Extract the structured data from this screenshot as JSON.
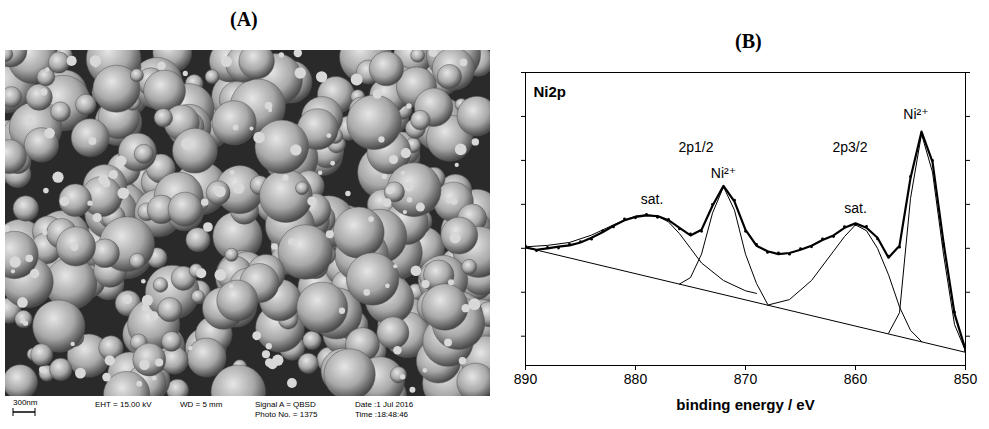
{
  "panel_labels": [
    "(A)",
    "(B)"
  ],
  "image": {
    "scale_bar": "300nm",
    "info": [
      [
        "EHT = 15.00 kV"
      ],
      [
        "WD = 5 mm"
      ],
      [
        "Signal A = QBSD",
        "Photo No. = 1375"
      ],
      [
        "Date :1 Jul 2016",
        "Time :18:48:46"
      ]
    ]
  },
  "chart_data": {
    "type": "line",
    "title": "Ni2p",
    "x_label": "binding energy / eV",
    "xlim": [
      890,
      850
    ],
    "xticks": [
      890,
      880,
      870,
      860,
      850
    ],
    "ylim": [
      0,
      100
    ],
    "yticks": [
      10,
      25,
      40,
      55,
      70,
      85,
      100
    ],
    "tick_labels": "x",
    "grid": false,
    "series": [
      {
        "type": "scatter",
        "marker": "dot",
        "color": "#000000",
        "x": [
          890,
          889,
          888,
          887,
          886,
          885,
          884,
          883,
          882,
          881,
          880,
          879,
          878,
          877,
          876,
          875,
          874,
          873,
          872,
          871,
          870,
          869,
          868,
          867,
          866,
          865,
          864,
          863,
          862,
          861,
          860,
          859,
          858,
          857,
          856,
          855,
          854,
          853,
          852,
          851,
          850
        ],
        "values": [
          40.8,
          39.2,
          40.3,
          40.1,
          41.4,
          42.3,
          43.1,
          45.9,
          47.3,
          50.0,
          50.4,
          51.6,
          50.6,
          49.9,
          46.6,
          44.9,
          45.8,
          55.0,
          60.8,
          56.4,
          45.8,
          41.3,
          38.6,
          38.4,
          38.0,
          39.9,
          40.5,
          43.2,
          44.0,
          47.4,
          48.1,
          47.5,
          43.2,
          37.3,
          40.4,
          64.5,
          79.3,
          70.0,
          41.5,
          18.2,
          5.0
        ]
      },
      {
        "type": "line",
        "line_style": "thick",
        "color": "#000000",
        "x": [
          890,
          889,
          888,
          887,
          886,
          885,
          884,
          883,
          882,
          881,
          880,
          879,
          878,
          877,
          876,
          875,
          874,
          873,
          872,
          871,
          870,
          869,
          868,
          867,
          866,
          865,
          864,
          863,
          862,
          861,
          860,
          859,
          858,
          857,
          856,
          855,
          854,
          853,
          852,
          851,
          850
        ],
        "values": [
          40.3,
          39.5,
          40,
          40.6,
          41,
          42,
          43.6,
          45.5,
          47.7,
          49.6,
          50.7,
          51.2,
          51,
          49.6,
          47,
          44.4,
          46.3,
          54.5,
          61.3,
          55.9,
          46.3,
          40.9,
          39,
          38,
          38.4,
          39.5,
          40.9,
          42.8,
          44.4,
          47,
          48.5,
          47,
          43.6,
          36.8,
          40.9,
          64,
          79.8,
          69.5,
          42,
          17.7,
          5.4
        ]
      },
      {
        "type": "line",
        "line_style": "thin",
        "color": "#000000",
        "x": [
          857,
          856,
          855,
          854,
          853,
          852,
          851,
          850
        ],
        "values": [
          11,
          18,
          57,
          79,
          66,
          38,
          14,
          5
        ]
      },
      {
        "type": "line",
        "line_style": "thin",
        "color": "#000000",
        "x": [
          868,
          866,
          864,
          862,
          861,
          860,
          859,
          858,
          857,
          856,
          855,
          854
        ],
        "values": [
          20.6,
          22.5,
          29,
          39,
          44,
          48,
          46,
          40,
          31,
          20,
          12,
          8.2
        ]
      },
      {
        "type": "line",
        "line_style": "thin",
        "color": "#000000",
        "x": [
          876,
          875,
          874,
          873,
          872,
          871,
          870,
          869,
          868
        ],
        "values": [
          27.8,
          30,
          38,
          52,
          61,
          53,
          38,
          28,
          21
        ]
      },
      {
        "type": "line",
        "line_style": "thin",
        "color": "#000000",
        "x": [
          890,
          888,
          886,
          884,
          882,
          880,
          879,
          878,
          877,
          876,
          875,
          874,
          872,
          870,
          869
        ],
        "values": [
          40.5,
          41,
          42,
          44.5,
          48,
          51,
          51.5,
          51,
          49,
          45,
          40,
          35,
          29,
          25.5,
          24.6
        ]
      },
      {
        "type": "line",
        "line_style": "thin",
        "color": "#000000",
        "x": [
          890,
          850
        ],
        "values": [
          40.3,
          4.5
        ]
      }
    ],
    "annotations": [
      {
        "text": "sat.",
        "x": 878.5,
        "y": 55
      },
      {
        "text": "2p1/2",
        "x": 874.5,
        "y": 73
      },
      {
        "text": "Ni²⁺",
        "x": 872,
        "y": 64
      },
      {
        "text": "sat.",
        "x": 860,
        "y": 52
      },
      {
        "text": "2p3/2",
        "x": 860.5,
        "y": 73
      },
      {
        "text": "Ni²⁺",
        "x": 854.5,
        "y": 84
      }
    ]
  }
}
